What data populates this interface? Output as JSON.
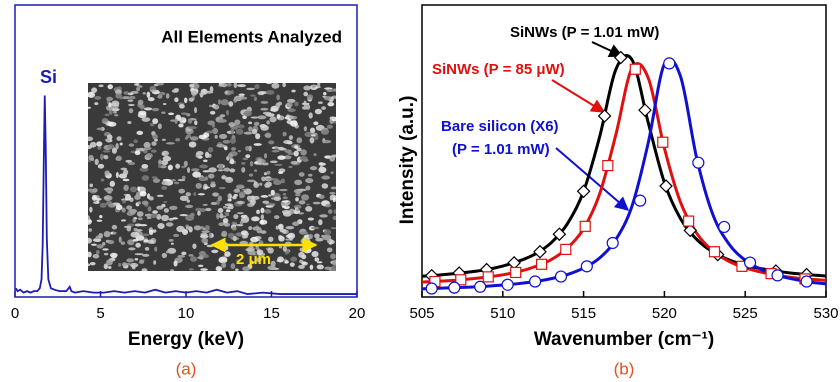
{
  "chart_data": [
    {
      "type": "line",
      "title": "All Elements Analyzed",
      "xlabel": "Energy (keV)",
      "caption": "(a)",
      "annotation": "Si",
      "scale_bar": "2 μm",
      "color": "#1c1cb4",
      "xlim": [
        0,
        20
      ],
      "xticks": [
        0,
        5,
        10,
        15,
        20
      ],
      "ylim": [
        0,
        100
      ],
      "x": [
        0.05,
        0.15,
        0.3,
        0.5,
        0.7,
        0.9,
        1.1,
        1.3,
        1.45,
        1.55,
        1.62,
        1.68,
        1.74,
        1.8,
        1.86,
        1.95,
        2.1,
        2.3,
        2.6,
        3.0,
        3.2,
        3.3,
        3.5,
        4.0,
        4.6,
        5.2,
        5.8,
        6.4,
        7.0,
        7.6,
        8.2,
        8.8,
        9.4,
        10.0,
        10.6,
        11.2,
        11.8,
        12.4,
        13.0,
        13.6,
        14.5,
        15.5,
        16.5,
        17.5,
        18.5,
        19.5,
        20.0
      ],
      "values": [
        3,
        2,
        2.5,
        1.5,
        2,
        1.5,
        2,
        2,
        3,
        6,
        18,
        45,
        69,
        50,
        20,
        6,
        3,
        2.5,
        2,
        2,
        3.5,
        2,
        1.5,
        2,
        1.5,
        1.5,
        2,
        1.5,
        2,
        1.5,
        2.5,
        1.5,
        2,
        1.5,
        2,
        1.5,
        2.5,
        1.5,
        2,
        1,
        1.5,
        1,
        1,
        1,
        1,
        1,
        1
      ]
    },
    {
      "type": "line",
      "xlabel": "Wavenumber (cm⁻¹)",
      "ylabel": "Intensity (a.u.)",
      "caption": "(b)",
      "xlim": [
        505,
        530
      ],
      "xticks": [
        505,
        510,
        515,
        520,
        525,
        530
      ],
      "ylim": [
        0,
        1
      ],
      "fit_x": [
        505,
        506,
        507,
        508,
        509,
        510,
        511,
        512,
        513,
        514,
        515,
        516,
        517,
        518,
        519,
        520,
        521,
        522,
        523,
        524,
        525,
        526,
        527,
        528,
        529,
        530
      ],
      "series": [
        {
          "name": "SiNWs (P = 1.01 mW)",
          "color": "#000000",
          "marker": "diamond",
          "values": [
            0.071,
            0.075,
            0.08,
            0.086,
            0.094,
            0.106,
            0.123,
            0.147,
            0.186,
            0.251,
            0.362,
            0.55,
            0.78,
            0.812,
            0.597,
            0.392,
            0.268,
            0.197,
            0.154,
            0.127,
            0.109,
            0.097,
            0.088,
            0.081,
            0.076,
            0.072
          ],
          "marker_x": [
            505.6,
            507.3,
            509.0,
            510.7,
            512.3,
            513.5,
            515.0,
            516.3,
            517.3,
            518.8,
            520.1,
            521.6,
            523.3,
            525.0,
            526.9,
            528.8
          ],
          "marker_values": [
            0.073,
            0.082,
            0.094,
            0.117,
            0.155,
            0.215,
            0.362,
            0.62,
            0.82,
            0.64,
            0.38,
            0.228,
            0.145,
            0.109,
            0.089,
            0.077
          ]
        },
        {
          "name": "SiNWs (P = 85 μW)",
          "color": "#e01010",
          "marker": "square",
          "values": [
            0.051,
            0.054,
            0.057,
            0.062,
            0.068,
            0.076,
            0.087,
            0.104,
            0.128,
            0.168,
            0.234,
            0.354,
            0.557,
            0.784,
            0.75,
            0.51,
            0.324,
            0.218,
            0.158,
            0.122,
            0.1,
            0.085,
            0.074,
            0.066,
            0.061,
            0.057
          ],
          "marker_x": [
            505.8,
            507.4,
            509.1,
            510.8,
            512.4,
            513.9,
            515.1,
            516.5,
            518.2,
            519.9,
            521.5,
            523.1,
            524.8,
            526.6,
            528.7
          ],
          "marker_values": [
            0.053,
            0.059,
            0.069,
            0.084,
            0.112,
            0.163,
            0.242,
            0.45,
            0.78,
            0.53,
            0.26,
            0.155,
            0.105,
            0.08,
            0.062
          ]
        },
        {
          "name": "Bare silicon (X6)",
          "name_line2": "(P = 1.01 mW)",
          "color": "#1010d0",
          "marker": "circle",
          "values": [
            0.028,
            0.03,
            0.032,
            0.034,
            0.037,
            0.041,
            0.046,
            0.053,
            0.063,
            0.077,
            0.099,
            0.134,
            0.197,
            0.312,
            0.528,
            0.798,
            0.755,
            0.475,
            0.282,
            0.181,
            0.126,
            0.094,
            0.074,
            0.061,
            0.051,
            0.045
          ],
          "marker_x": [
            505.6,
            507.0,
            508.6,
            510.3,
            512.0,
            513.6,
            515.2,
            516.8,
            518.5,
            520.3,
            522.1,
            523.7,
            525.3,
            527.0,
            528.8
          ],
          "marker_values": [
            0.029,
            0.032,
            0.035,
            0.042,
            0.053,
            0.07,
            0.105,
            0.185,
            0.33,
            0.8,
            0.46,
            0.24,
            0.118,
            0.074,
            0.053
          ]
        }
      ]
    }
  ]
}
